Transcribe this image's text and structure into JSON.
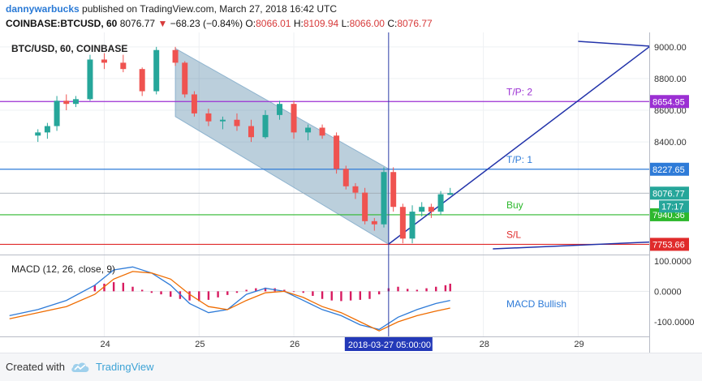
{
  "header": {
    "author": "dannywarbucks",
    "published_text": "published on TradingView.com, March 27, 2018 16:42 UTC",
    "symbol": "COINBASE:BTCUSD, 60",
    "last": "8076.77",
    "change": "−68.23 (−0.84%)",
    "o_label": "O:",
    "o_value": "8066.01",
    "h_label": "H:",
    "h_value": "8109.94",
    "l_label": "L:",
    "l_value": "8066.00",
    "c_label": "C:",
    "c_value": "8076.77"
  },
  "footer": {
    "created_with": "Created with",
    "brand": "TradingView"
  },
  "chart_data": [
    {
      "type": "candlestick",
      "title": "BTC/USD, 60, COINBASE",
      "ylim": [
        7720,
        9040
      ],
      "y_ticks": [
        9000,
        8800,
        8600,
        8400
      ],
      "y_tick_labels": [
        "9000.00",
        "8800.00",
        "8600.00",
        "8400.00"
      ],
      "x_ticks": [
        24,
        25,
        26,
        27,
        28,
        29
      ],
      "x_tick_labels": [
        "24",
        "25",
        "26",
        "",
        "28",
        "29"
      ],
      "crosshair_label": "2018-03-27 05:00:00",
      "price_levels": [
        {
          "name": "T/P: 2",
          "value": 8654.95,
          "label": "8654.95",
          "color": "#9b2fd3"
        },
        {
          "name": "T/P: 1",
          "value": 8227.65,
          "label": "8227.65",
          "color": "#2e7bd8"
        },
        {
          "name": "Buy",
          "value": 7940.36,
          "label": "7940.36",
          "color": "#2db82d"
        },
        {
          "name": "S/L",
          "value": 7753.66,
          "label": "7753.66",
          "color": "#e02b2b"
        }
      ],
      "last_price": {
        "value": 8076.77,
        "label": "8076.77",
        "countdown": "17:17",
        "color": "#26a69a"
      },
      "colors": {
        "up": "#26a69a",
        "down": "#ef5350",
        "channel": "#1f5f8a"
      },
      "candles": [
        {
          "t": 23.3,
          "o": 8440,
          "h": 8480,
          "l": 8400,
          "c": 8460
        },
        {
          "t": 23.4,
          "o": 8460,
          "h": 8520,
          "l": 8420,
          "c": 8500
        },
        {
          "t": 23.5,
          "o": 8500,
          "h": 8690,
          "l": 8470,
          "c": 8660
        },
        {
          "t": 23.6,
          "o": 8660,
          "h": 8700,
          "l": 8600,
          "c": 8640
        },
        {
          "t": 23.7,
          "o": 8640,
          "h": 8690,
          "l": 8620,
          "c": 8670
        },
        {
          "t": 23.85,
          "o": 8670,
          "h": 8950,
          "l": 8660,
          "c": 8920
        },
        {
          "t": 24.0,
          "o": 8920,
          "h": 8960,
          "l": 8860,
          "c": 8900
        },
        {
          "t": 24.2,
          "o": 8900,
          "h": 8950,
          "l": 8840,
          "c": 8860
        },
        {
          "t": 24.4,
          "o": 8860,
          "h": 8870,
          "l": 8690,
          "c": 8720
        },
        {
          "t": 24.55,
          "o": 8720,
          "h": 9000,
          "l": 8700,
          "c": 8980
        },
        {
          "t": 24.75,
          "o": 8980,
          "h": 9000,
          "l": 8880,
          "c": 8900
        },
        {
          "t": 24.85,
          "o": 8900,
          "h": 8910,
          "l": 8680,
          "c": 8700
        },
        {
          "t": 24.95,
          "o": 8700,
          "h": 8720,
          "l": 8560,
          "c": 8580
        },
        {
          "t": 25.1,
          "o": 8580,
          "h": 8610,
          "l": 8500,
          "c": 8530
        },
        {
          "t": 25.25,
          "o": 8530,
          "h": 8560,
          "l": 8480,
          "c": 8540
        },
        {
          "t": 25.4,
          "o": 8540,
          "h": 8580,
          "l": 8470,
          "c": 8500
        },
        {
          "t": 25.55,
          "o": 8500,
          "h": 8540,
          "l": 8400,
          "c": 8430
        },
        {
          "t": 25.7,
          "o": 8430,
          "h": 8600,
          "l": 8420,
          "c": 8570
        },
        {
          "t": 25.85,
          "o": 8570,
          "h": 8660,
          "l": 8540,
          "c": 8640
        },
        {
          "t": 26.0,
          "o": 8640,
          "h": 8660,
          "l": 8420,
          "c": 8460
        },
        {
          "t": 26.15,
          "o": 8460,
          "h": 8510,
          "l": 8410,
          "c": 8490
        },
        {
          "t": 26.3,
          "o": 8490,
          "h": 8510,
          "l": 8420,
          "c": 8440
        },
        {
          "t": 26.45,
          "o": 8440,
          "h": 8460,
          "l": 8200,
          "c": 8230
        },
        {
          "t": 26.55,
          "o": 8230,
          "h": 8250,
          "l": 8100,
          "c": 8120
        },
        {
          "t": 26.65,
          "o": 8120,
          "h": 8140,
          "l": 8040,
          "c": 8080
        },
        {
          "t": 26.75,
          "o": 8080,
          "h": 8110,
          "l": 7880,
          "c": 7900
        },
        {
          "t": 26.85,
          "o": 7900,
          "h": 7920,
          "l": 7840,
          "c": 7880
        },
        {
          "t": 26.95,
          "o": 7880,
          "h": 8240,
          "l": 7860,
          "c": 8210
        },
        {
          "t": 27.05,
          "o": 8210,
          "h": 8240,
          "l": 7960,
          "c": 7990
        },
        {
          "t": 27.15,
          "o": 7990,
          "h": 8010,
          "l": 7760,
          "c": 7790
        },
        {
          "t": 27.25,
          "o": 7790,
          "h": 8000,
          "l": 7760,
          "c": 7960
        },
        {
          "t": 27.35,
          "o": 7960,
          "h": 8020,
          "l": 7930,
          "c": 7990
        },
        {
          "t": 27.45,
          "o": 7990,
          "h": 8010,
          "l": 7920,
          "c": 7960
        },
        {
          "t": 27.55,
          "o": 7960,
          "h": 8090,
          "l": 7940,
          "c": 8070
        },
        {
          "t": 27.65,
          "o": 8066.01,
          "h": 8109.94,
          "l": 8066.0,
          "c": 8076.77
        }
      ]
    },
    {
      "type": "bar",
      "title": "MACD (12, 26, close, 9)",
      "annotation": "MACD Bullish",
      "ylim": [
        -140,
        110
      ],
      "y_ticks": [
        100,
        0,
        -100
      ],
      "y_tick_labels": [
        "100.0000",
        "0.0000",
        "-100.0000"
      ],
      "colors": {
        "histogram": "#d81b60",
        "macd": "#2e7bd8",
        "signal": "#ef6c00"
      },
      "series": [
        {
          "name": "histogram",
          "type": "bar",
          "x": [
            23.9,
            24.0,
            24.1,
            24.2,
            24.3,
            24.4,
            24.5,
            24.6,
            24.7,
            24.8,
            24.9,
            25.0,
            25.1,
            25.2,
            25.3,
            25.4,
            25.5,
            25.6,
            25.7,
            25.8,
            25.9,
            26.0,
            26.1,
            26.2,
            26.3,
            26.4,
            26.5,
            26.6,
            26.7,
            26.8,
            26.9,
            27.0,
            27.1,
            27.2,
            27.3,
            27.4,
            27.5,
            27.6,
            27.65
          ],
          "values": [
            20,
            25,
            30,
            28,
            15,
            5,
            -5,
            -10,
            -18,
            -25,
            -30,
            -32,
            -28,
            -20,
            -12,
            -5,
            5,
            10,
            12,
            10,
            5,
            0,
            -5,
            -15,
            -25,
            -30,
            -32,
            -30,
            -28,
            -25,
            -10,
            10,
            15,
            8,
            5,
            10,
            15,
            20,
            25
          ]
        },
        {
          "name": "macd",
          "type": "line",
          "x": [
            23.0,
            23.3,
            23.6,
            23.9,
            24.1,
            24.3,
            24.5,
            24.7,
            24.9,
            25.1,
            25.3,
            25.5,
            25.7,
            25.9,
            26.1,
            26.3,
            26.5,
            26.7,
            26.9,
            27.1,
            27.3,
            27.5,
            27.65
          ],
          "values": [
            -80,
            -60,
            -30,
            20,
            70,
            80,
            60,
            20,
            -40,
            -70,
            -60,
            -10,
            10,
            0,
            -30,
            -60,
            -80,
            -110,
            -125,
            -85,
            -60,
            -40,
            -30
          ]
        },
        {
          "name": "signal",
          "type": "line",
          "x": [
            23.0,
            23.3,
            23.6,
            23.9,
            24.1,
            24.3,
            24.5,
            24.7,
            24.9,
            25.1,
            25.3,
            25.5,
            25.7,
            25.9,
            26.1,
            26.3,
            26.5,
            26.7,
            26.9,
            27.1,
            27.3,
            27.5,
            27.65
          ],
          "values": [
            -90,
            -70,
            -50,
            -10,
            40,
            65,
            60,
            40,
            -10,
            -50,
            -60,
            -30,
            -5,
            0,
            -20,
            -50,
            -70,
            -100,
            -130,
            -100,
            -80,
            -65,
            -55
          ]
        }
      ]
    }
  ]
}
